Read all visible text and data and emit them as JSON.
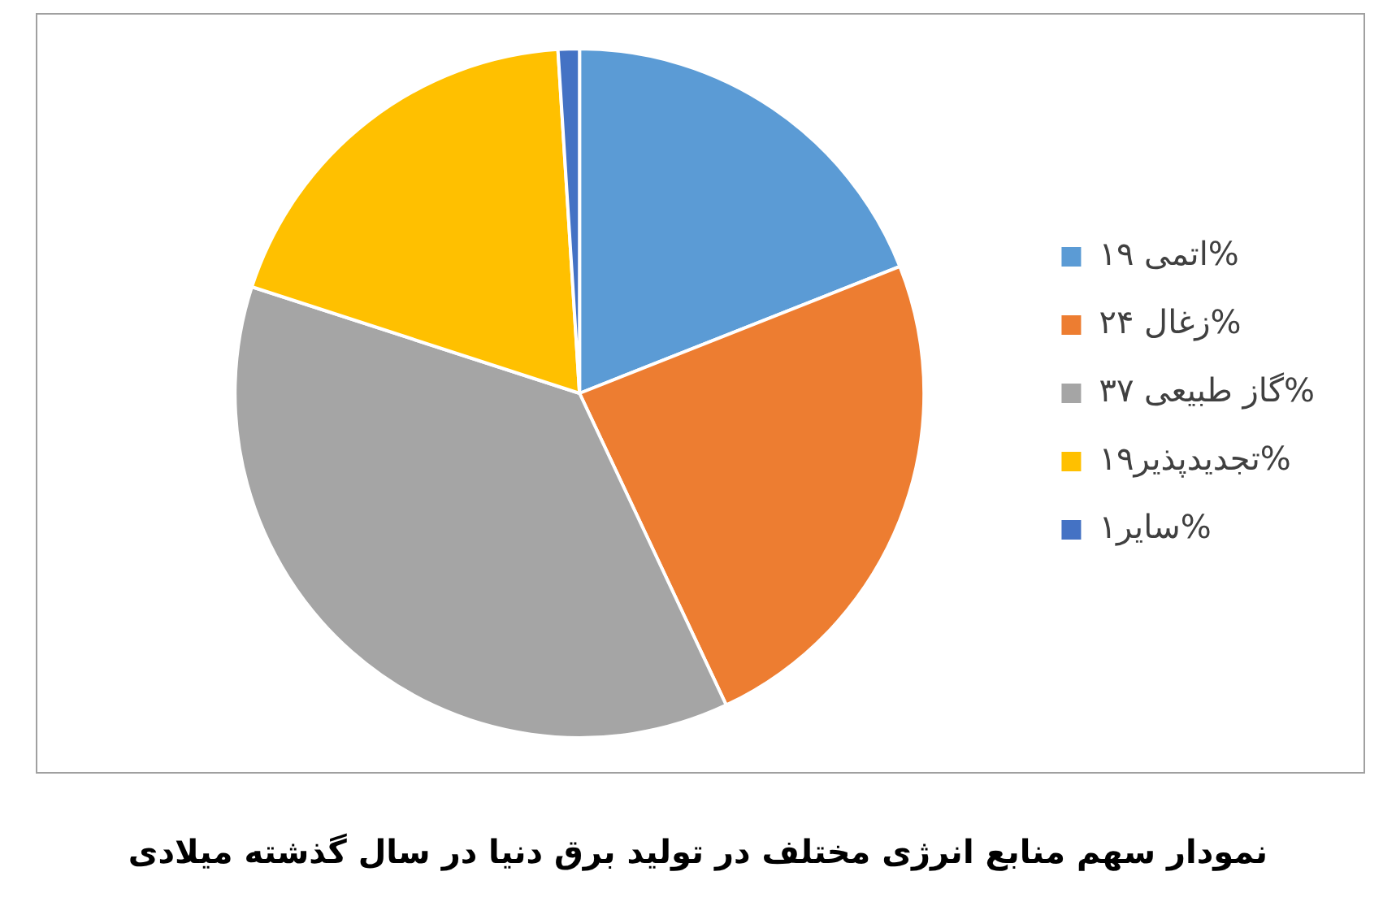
{
  "chart_data": {
    "type": "pie",
    "title": "نمودار سهم منابع انرژی مختلف در تولید برق دنیا در سال گذشته میلادی",
    "categories": [
      "اتمی ۱۹%",
      "زغال ۲۴%",
      "گاز طبیعی ۳۷%",
      "تجدیدپذیر۱۹%",
      "سایر۱%"
    ],
    "values": [
      19,
      24,
      37,
      19,
      1
    ],
    "colors": [
      "#5b9bd5",
      "#ed7d31",
      "#a5a5a5",
      "#ffc000",
      "#4472c4"
    ],
    "legend": "right"
  }
}
